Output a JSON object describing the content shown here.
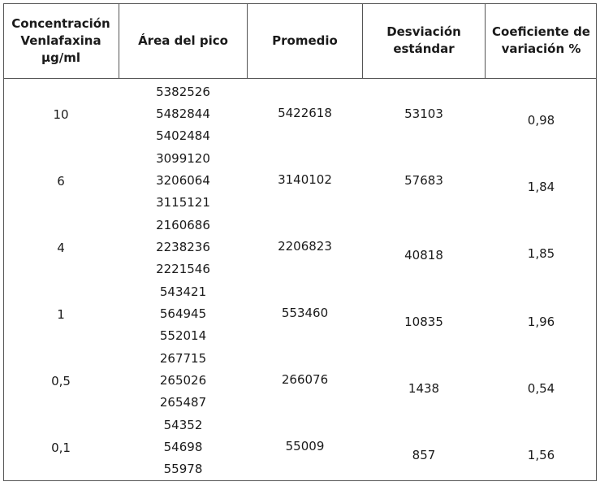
{
  "table": {
    "headers": [
      "Concentración\nVenlafaxina\nµg/ml",
      "Área del pico",
      "Promedio",
      "Desviación\nestándar",
      "Coeficiente de\nvariación %"
    ],
    "rows": [
      {
        "conc": "10",
        "areas": [
          "5382526",
          "5482844",
          "5402484"
        ],
        "mean": "5422618",
        "sd": "53103",
        "cv": "0,98"
      },
      {
        "conc": "6",
        "areas": [
          "3099120",
          "3206064",
          "3115121"
        ],
        "mean": "3140102",
        "sd": "57683",
        "cv": "1,84"
      },
      {
        "conc": "4",
        "areas": [
          "2160686",
          "2238236",
          "2221546"
        ],
        "mean": "2206823",
        "sd": "40818",
        "cv": "1,85"
      },
      {
        "conc": "1",
        "areas": [
          "543421",
          "564945",
          "552014"
        ],
        "mean": "553460",
        "sd": "10835",
        "cv": "1,96"
      },
      {
        "conc": "0,5",
        "areas": [
          "267715",
          "265026",
          "265487"
        ],
        "mean": "266076",
        "sd": "1438",
        "cv": "0,54"
      },
      {
        "conc": "0,1",
        "areas": [
          "54352",
          "54698",
          "55978"
        ],
        "mean": "55009",
        "sd": "857",
        "cv": "1,56"
      }
    ]
  }
}
